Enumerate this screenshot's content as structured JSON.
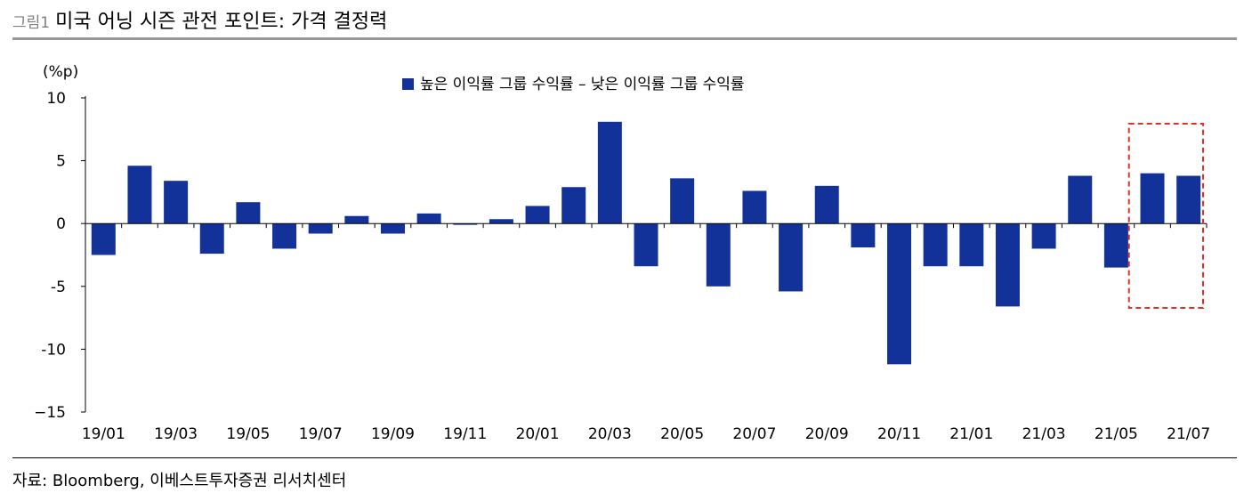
{
  "header": {
    "figure_label": "그림1",
    "title": "미국 어닝 시즌 관전 포인트: 가격 결정력"
  },
  "source": "자료: Bloomberg, 이베스트투자증권 리서치센터",
  "chart_data": {
    "type": "bar",
    "title": "미국 어닝 시즌 관전 포인트: 가격 결정력",
    "ylabel": "(%p)",
    "xlabel": "",
    "ylim": [
      -15,
      10
    ],
    "yticks": [
      10,
      5,
      0,
      -5,
      -10,
      -15
    ],
    "ytick_labels": [
      "10",
      "5",
      "0",
      "-5",
      "-10",
      "−15"
    ],
    "legend": "top-center",
    "series": [
      {
        "name": "높은 이익률 그룹 수익률 – 낮은 이익률 그룹 수익률",
        "color": "#12329a",
        "values": [
          -2.5,
          4.6,
          3.4,
          -2.4,
          1.7,
          -2.0,
          -0.8,
          0.6,
          -0.8,
          0.8,
          -0.1,
          0.35,
          1.4,
          2.9,
          8.1,
          -3.4,
          3.6,
          -5.0,
          2.6,
          -5.4,
          3.0,
          -1.9,
          -11.2,
          -3.4,
          -3.4,
          -6.6,
          -2.0,
          3.8,
          -3.5,
          4.0,
          3.8
        ]
      }
    ],
    "categories": [
      "19/01",
      "19/02",
      "19/03",
      "19/04",
      "19/05",
      "19/06",
      "19/07",
      "19/08",
      "19/09",
      "19/10",
      "19/11",
      "19/12",
      "20/01",
      "20/02",
      "20/03",
      "20/04",
      "20/05",
      "20/06",
      "20/07",
      "20/08",
      "20/09",
      "20/10",
      "20/11",
      "20/12",
      "21/01",
      "21/02",
      "21/03",
      "21/04",
      "21/05",
      "21/06",
      "21/07"
    ],
    "xtick_labels": [
      "19/01",
      "19/03",
      "19/05",
      "19/07",
      "19/09",
      "19/11",
      "20/01",
      "20/03",
      "20/05",
      "20/07",
      "20/09",
      "20/11",
      "21/01",
      "21/03",
      "21/05",
      "21/07"
    ],
    "highlight": {
      "categories": [
        "21/06",
        "21/07"
      ],
      "style": "dashed-box",
      "color": "#e0302a"
    }
  }
}
